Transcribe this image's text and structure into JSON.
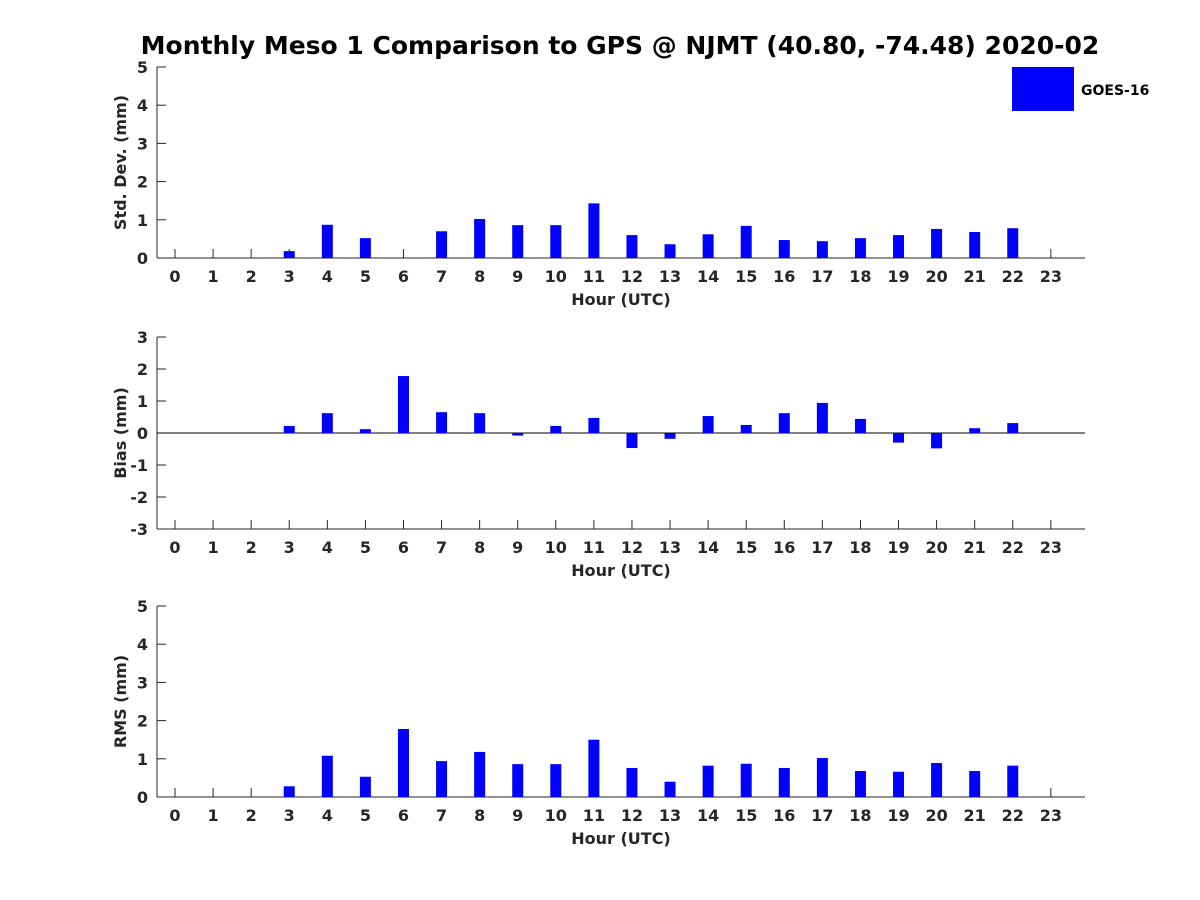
{
  "title": "Monthly Meso 1 Comparison to GPS @ NJMT (40.80, -74.48) 2020-02",
  "legend": {
    "label": "GOES-16",
    "placement": "top-right"
  },
  "colors": {
    "bar": "#0000ff",
    "axis": "#262626",
    "zero_line": "#000000"
  },
  "chart_data": [
    {
      "type": "bar",
      "categories": [
        "0",
        "1",
        "2",
        "3",
        "4",
        "5",
        "6",
        "7",
        "8",
        "9",
        "10",
        "11",
        "12",
        "13",
        "14",
        "15",
        "16",
        "17",
        "18",
        "19",
        "20",
        "21",
        "22",
        "23"
      ],
      "series": [
        {
          "name": "GOES-16",
          "values": [
            null,
            null,
            null,
            0.18,
            0.87,
            0.52,
            null,
            0.7,
            1.02,
            0.86,
            0.86,
            1.43,
            0.6,
            0.36,
            0.62,
            0.84,
            0.47,
            0.44,
            0.52,
            0.6,
            0.76,
            0.68,
            0.78,
            null
          ]
        }
      ],
      "xlabel": "Hour (UTC)",
      "ylabel": "Std. Dev. (mm)",
      "ylim": [
        0,
        5
      ],
      "yticks": [
        0,
        1,
        2,
        3,
        4,
        5
      ],
      "grid": false
    },
    {
      "type": "bar",
      "categories": [
        "0",
        "1",
        "2",
        "3",
        "4",
        "5",
        "6",
        "7",
        "8",
        "9",
        "10",
        "11",
        "12",
        "13",
        "14",
        "15",
        "16",
        "17",
        "18",
        "19",
        "20",
        "21",
        "22",
        "23"
      ],
      "series": [
        {
          "name": "GOES-16",
          "values": [
            null,
            null,
            null,
            0.22,
            0.62,
            0.12,
            1.78,
            0.65,
            0.62,
            -0.08,
            0.22,
            0.47,
            -0.47,
            -0.18,
            0.53,
            0.25,
            0.62,
            0.94,
            0.44,
            -0.3,
            -0.48,
            0.15,
            0.31,
            null
          ]
        }
      ],
      "xlabel": "Hour (UTC)",
      "ylabel": "Bias (mm)",
      "ylim": [
        -3,
        3
      ],
      "yticks": [
        -3,
        -2,
        -1,
        0,
        1,
        2,
        3
      ],
      "grid": false
    },
    {
      "type": "bar",
      "categories": [
        "0",
        "1",
        "2",
        "3",
        "4",
        "5",
        "6",
        "7",
        "8",
        "9",
        "10",
        "11",
        "12",
        "13",
        "14",
        "15",
        "16",
        "17",
        "18",
        "19",
        "20",
        "21",
        "22",
        "23"
      ],
      "series": [
        {
          "name": "GOES-16",
          "values": [
            null,
            null,
            null,
            0.28,
            1.08,
            0.53,
            1.78,
            0.94,
            1.18,
            0.86,
            0.86,
            1.5,
            0.76,
            0.4,
            0.82,
            0.87,
            0.76,
            1.02,
            0.68,
            0.66,
            0.89,
            0.68,
            0.82,
            null
          ]
        }
      ],
      "xlabel": "Hour (UTC)",
      "ylabel": "RMS (mm)",
      "ylim": [
        0,
        5
      ],
      "yticks": [
        0,
        1,
        2,
        3,
        4,
        5
      ],
      "grid": false
    }
  ]
}
